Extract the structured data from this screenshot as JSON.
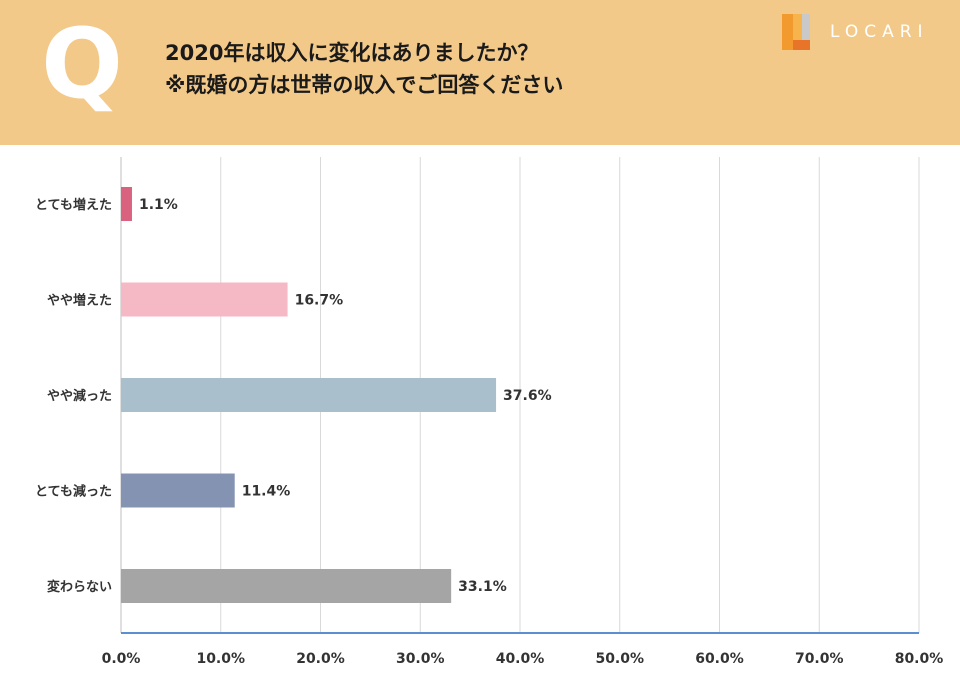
{
  "header": {
    "q_letter": "Q",
    "title_line1": "2020年は収入に変化はありましたか？",
    "title_line2": "※既婚の方は世帯の収入でご回答ください",
    "brand": "LOCARI",
    "brand_icon": "locari-logo-icon"
  },
  "colors": {
    "header_bg": "#f3c98a",
    "grid": "#d9d9d9",
    "axis": "#5b8fd1"
  },
  "chart_data": {
    "type": "bar",
    "orientation": "horizontal",
    "categories": [
      "とても増えた",
      "やや増えた",
      "やや減った",
      "とても減った",
      "変わらない"
    ],
    "values": [
      1.1,
      16.7,
      37.6,
      11.4,
      33.1
    ],
    "value_labels": [
      "1.1%",
      "16.7%",
      "37.6%",
      "11.4%",
      "33.1%"
    ],
    "bar_colors": [
      "#d9627f",
      "#f5b8c5",
      "#a9bfcb",
      "#8593b2",
      "#a5a5a5"
    ],
    "xlim": [
      0,
      80
    ],
    "xticks": [
      0,
      10,
      20,
      30,
      40,
      50,
      60,
      70,
      80
    ],
    "xtick_labels": [
      "0.0%",
      "10.0%",
      "20.0%",
      "30.0%",
      "40.0%",
      "50.0%",
      "60.0%",
      "70.0%",
      "80.0%"
    ],
    "grid": true,
    "legend": "none"
  }
}
